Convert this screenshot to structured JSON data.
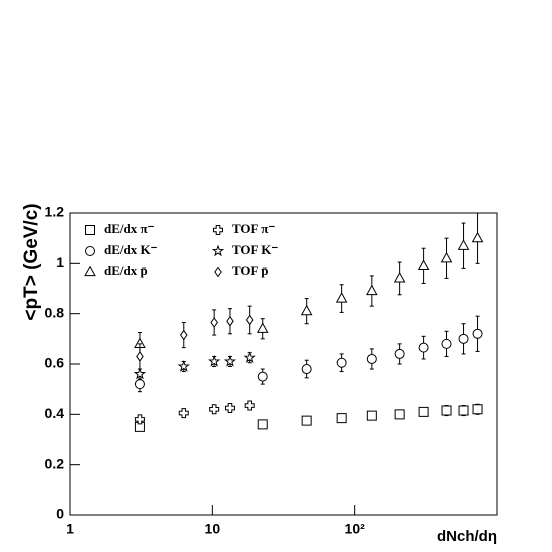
{
  "chart_data": {
    "type": "scatter",
    "x_label": "dNch/dη",
    "y_label": "<pT> (GeV/c)",
    "log_x": true,
    "xlim": [
      1,
      1000
    ],
    "ylim": [
      0,
      1.2
    ],
    "xticks": [
      1,
      10,
      {
        "value": 100,
        "label": "10²"
      }
    ],
    "yticks": [
      0,
      0.2,
      0.4,
      0.6,
      0.8,
      1,
      1.2
    ],
    "legend": "upper left",
    "series": [
      {
        "name": "dE/dx π⁻",
        "color": "#000000",
        "marker": "square",
        "x": [
          3.1,
          22.6,
          46,
          81,
          132,
          207,
          305,
          442,
          582,
          730
        ],
        "values": [
          0.35,
          0.36,
          0.375,
          0.385,
          0.395,
          0.4,
          0.41,
          0.415,
          0.415,
          0.42
        ],
        "errors": [
          0.015,
          0.01,
          0.015,
          0.015,
          0.015,
          0.015,
          0.015,
          0.02,
          0.02,
          0.02
        ]
      },
      {
        "name": "TOF π⁻",
        "color": "#000000",
        "marker": "cross",
        "x": [
          3.1,
          6.3,
          10.3,
          13.3,
          18.3
        ],
        "values": [
          0.38,
          0.405,
          0.42,
          0.425,
          0.435
        ],
        "errors": [
          0.012,
          0.012,
          0.012,
          0.01,
          0.01
        ]
      },
      {
        "name": "dE/dx K⁻",
        "color": "#000000",
        "marker": "circle",
        "x": [
          3.1,
          22.6,
          46,
          81,
          132,
          207,
          305,
          442,
          582,
          730
        ],
        "values": [
          0.52,
          0.55,
          0.58,
          0.605,
          0.62,
          0.64,
          0.665,
          0.68,
          0.7,
          0.72
        ],
        "errors": [
          0.03,
          0.03,
          0.035,
          0.035,
          0.04,
          0.04,
          0.045,
          0.05,
          0.06,
          0.07
        ]
      },
      {
        "name": "TOF K⁻",
        "color": "#000000",
        "marker": "star",
        "x": [
          3.1,
          6.3,
          10.3,
          13.3,
          18.3
        ],
        "values": [
          0.56,
          0.59,
          0.61,
          0.61,
          0.625
        ],
        "errors": [
          0.02,
          0.02,
          0.02,
          0.02,
          0.02
        ]
      },
      {
        "name": "dE/dx p̄",
        "color": "#000000",
        "marker": "triangle",
        "x": [
          3.1,
          22.6,
          46,
          81,
          132,
          207,
          305,
          442,
          582,
          730
        ],
        "values": [
          0.68,
          0.74,
          0.81,
          0.86,
          0.89,
          0.94,
          0.99,
          1.02,
          1.07,
          1.1
        ],
        "errors": [
          0.045,
          0.04,
          0.05,
          0.055,
          0.06,
          0.065,
          0.07,
          0.08,
          0.09,
          0.1
        ]
      },
      {
        "name": "TOF p̄",
        "color": "#000000",
        "marker": "diamond",
        "x": [
          3.1,
          6.3,
          10.3,
          13.3,
          18.3
        ],
        "values": [
          0.63,
          0.715,
          0.765,
          0.77,
          0.775
        ],
        "errors": [
          0.05,
          0.05,
          0.05,
          0.05,
          0.055
        ]
      }
    ]
  }
}
